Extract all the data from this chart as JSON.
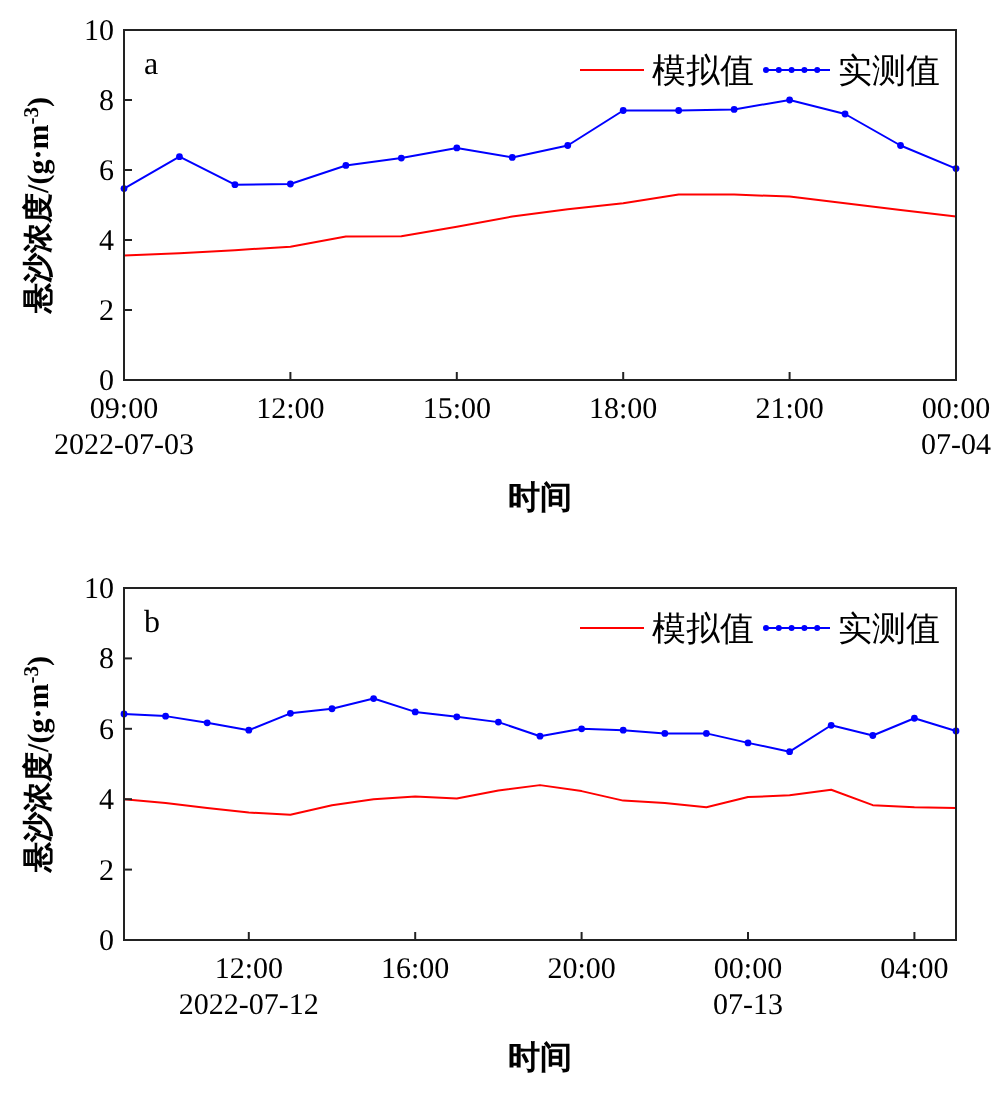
{
  "chart_data": [
    {
      "type": "line",
      "title": "a",
      "xlabel": "时间",
      "ylabel": "悬沙浓度/(g·m$^{-3}$)",
      "legend": "top right",
      "line_style": "solid",
      "grid": false,
      "x": [
        "2022-07-03T09:00",
        "2022-07-03T10:00",
        "2022-07-03T11:00",
        "2022-07-03T12:00",
        "2022-07-03T13:00",
        "2022-07-03T14:00",
        "2022-07-03T15:00",
        "2022-07-03T16:00",
        "2022-07-03T17:00",
        "2022-07-03T18:00",
        "2022-07-03T19:00",
        "2022-07-03T20:00",
        "2022-07-03T21:00",
        "2022-07-03T22:00",
        "2022-07-03T23:00",
        "2022-07-04T00:00"
      ],
      "series": [
        {
          "name": "模拟值",
          "color": "#ff0000",
          "marker": "none",
          "values": [
            3.56,
            3.62,
            3.71,
            3.81,
            4.1,
            4.11,
            4.38,
            4.67,
            4.88,
            5.05,
            5.3,
            5.3,
            5.24,
            5.05,
            4.86,
            4.67
          ]
        },
        {
          "name": "实测值",
          "color": "#0000ff",
          "marker": "circle",
          "values": [
            5.47,
            6.38,
            5.58,
            5.6,
            6.13,
            6.34,
            6.63,
            6.36,
            6.7,
            7.7,
            7.7,
            7.73,
            8.0,
            7.6,
            6.7,
            6.04
          ]
        }
      ],
      "xlim": [
        "2022-07-03T09:00",
        "2022-07-04T00:00"
      ],
      "xticks": [
        {
          "value": "2022-07-03T09:00",
          "label": "09:00\n2022-07-03"
        },
        {
          "value": "2022-07-03T12:00",
          "label": "12:00"
        },
        {
          "value": "2022-07-03T15:00",
          "label": "15:00"
        },
        {
          "value": "2022-07-03T18:00",
          "label": "18:00"
        },
        {
          "value": "2022-07-03T21:00",
          "label": "21:00"
        },
        {
          "value": "2022-07-04T00:00",
          "label": "00:00\n07-04"
        }
      ],
      "ylim": [
        0,
        10
      ],
      "yticks": [
        0,
        2,
        4,
        6,
        8,
        10
      ]
    },
    {
      "type": "line",
      "title": "b",
      "xlabel": "时间",
      "ylabel": "悬沙浓度/(g·m$^{-3}$)",
      "legend": "top right",
      "line_style": "solid",
      "grid": false,
      "x": [
        "2022-07-12T09:00",
        "2022-07-12T10:00",
        "2022-07-12T11:00",
        "2022-07-12T12:00",
        "2022-07-12T13:00",
        "2022-07-12T14:00",
        "2022-07-12T15:00",
        "2022-07-12T16:00",
        "2022-07-12T17:00",
        "2022-07-12T18:00",
        "2022-07-12T19:00",
        "2022-07-12T20:00",
        "2022-07-12T21:00",
        "2022-07-12T22:00",
        "2022-07-12T23:00",
        "2022-07-13T00:00",
        "2022-07-13T01:00",
        "2022-07-13T02:00",
        "2022-07-13T03:00",
        "2022-07-13T04:00",
        "2022-07-13T05:00"
      ],
      "series": [
        {
          "name": "模拟值",
          "color": "#ff0000",
          "marker": "none",
          "values": [
            4.0,
            3.89,
            3.75,
            3.62,
            3.56,
            3.83,
            4.0,
            4.08,
            4.02,
            4.25,
            4.4,
            4.23,
            3.96,
            3.89,
            3.77,
            4.06,
            4.11,
            4.27,
            3.83,
            3.77,
            3.75
          ]
        },
        {
          "name": "实测值",
          "color": "#0000ff",
          "marker": "circle",
          "values": [
            6.42,
            6.36,
            6.17,
            5.96,
            6.44,
            6.57,
            6.86,
            6.48,
            6.34,
            6.19,
            5.79,
            6.0,
            5.96,
            5.87,
            5.87,
            5.6,
            5.35,
            6.1,
            5.81,
            6.3,
            5.94
          ]
        }
      ],
      "xlim": [
        "2022-07-12T09:00",
        "2022-07-13T05:00"
      ],
      "xticks": [
        {
          "value": "2022-07-12T12:00",
          "label": "12:00\n2022-07-12"
        },
        {
          "value": "2022-07-12T16:00",
          "label": "16:00"
        },
        {
          "value": "2022-07-12T20:00",
          "label": "20:00"
        },
        {
          "value": "2022-07-13T00:00",
          "label": "00:00\n07-13"
        },
        {
          "value": "2022-07-13T04:00",
          "label": "04:00"
        }
      ],
      "ylim": [
        0,
        10
      ],
      "yticks": [
        0,
        2,
        4,
        6,
        8,
        10
      ]
    }
  ]
}
